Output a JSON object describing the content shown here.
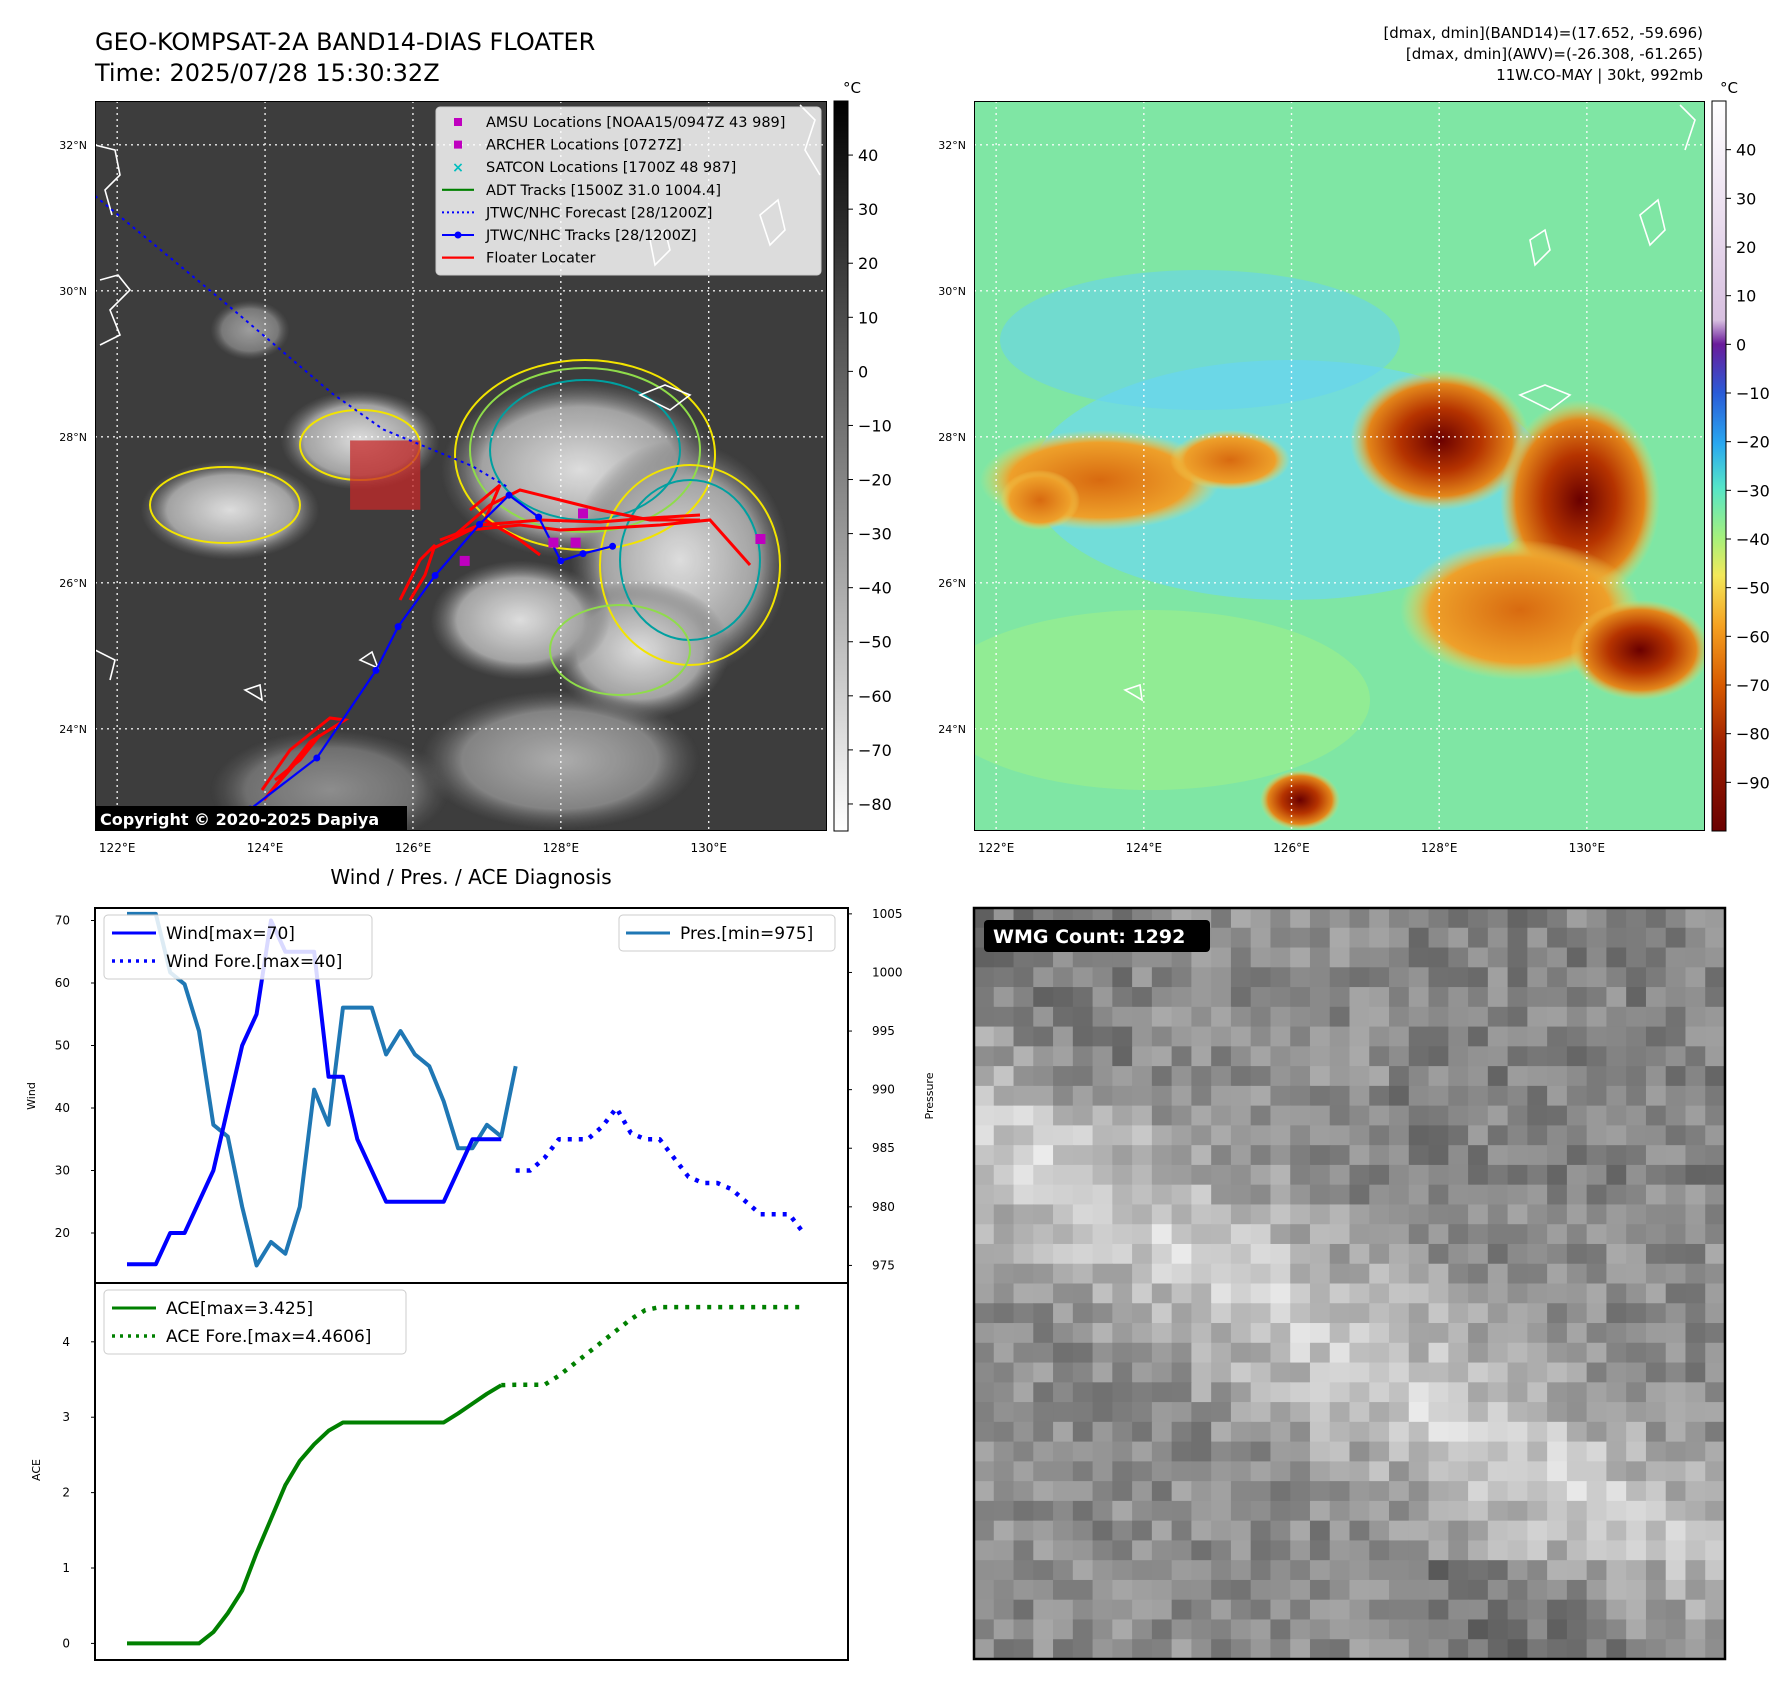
{
  "header": {
    "title_line1": "GEO-KOMPSAT-2A BAND14-DIAS FLOATER",
    "title_line2": "Time: 2025/07/28 15:30:32Z",
    "info_line1": "[dmax, dmin](BAND14)=(17.652, -59.696)",
    "info_line2": "[dmax, dmin](AWV)=(-26.308, -61.265)",
    "info_line3": "11W.CO-MAY | 30kt, 992mb"
  },
  "map": {
    "lat_labels": [
      "32°N",
      "30°N",
      "28°N",
      "26°N",
      "24°N"
    ],
    "lat_values": [
      32,
      30,
      28,
      26,
      24
    ],
    "lon_labels": [
      "122°E",
      "124°E",
      "126°E",
      "128°E",
      "130°E"
    ],
    "lon_values": [
      122,
      124,
      126,
      128,
      130
    ],
    "lon_range": [
      121.7,
      131.6
    ],
    "lat_range": [
      22.6,
      32.6
    ],
    "copyright": "Copyright © 2020-2025 Dapiya",
    "legend": [
      {
        "label": "AMSU Locations [NOAA15/0947Z 43 989]",
        "color": "#bf00bf",
        "symbol": "square"
      },
      {
        "label": "ARCHER Locations [0727Z]",
        "color": "#bf00bf",
        "symbol": "square"
      },
      {
        "label": "SATCON Locations [1700Z 48 987]",
        "color": "#00bfbf",
        "symbol": "x"
      },
      {
        "label": "ADT Tracks [1500Z 31.0 1004.4]",
        "color": "#008000",
        "symbol": "line"
      },
      {
        "label": "JTWC/NHC Forecast [28/1200Z]",
        "color": "#0000ff",
        "symbol": "dotted"
      },
      {
        "label": "JTWC/NHC Tracks [28/1200Z]",
        "color": "#0000ff",
        "symbol": "line-dot"
      },
      {
        "label": "Floater Locater",
        "color": "#ff0000",
        "symbol": "line"
      }
    ],
    "jtwc_forecast_track": [
      [
        121.7,
        31.3
      ],
      [
        123.5,
        29.8
      ],
      [
        124.9,
        28.6
      ],
      [
        125.6,
        28.1
      ],
      [
        126.8,
        27.6
      ],
      [
        127.3,
        27.3
      ]
    ],
    "jtwc_track": [
      [
        123.8,
        22.9
      ],
      [
        124.7,
        23.6
      ],
      [
        125.5,
        24.8
      ],
      [
        125.8,
        25.4
      ],
      [
        126.3,
        26.1
      ],
      [
        126.9,
        26.8
      ],
      [
        127.3,
        27.2
      ],
      [
        127.7,
        26.9
      ],
      [
        128.0,
        26.3
      ],
      [
        128.3,
        26.4
      ],
      [
        128.7,
        26.5
      ]
    ],
    "amsu_points": [
      [
        128.3,
        26.95
      ],
      [
        130.7,
        26.6
      ],
      [
        126.7,
        26.3
      ],
      [
        127.9,
        26.55
      ],
      [
        128.2,
        26.55
      ]
    ],
    "floater_box": {
      "lon": [
        125.15,
        126.1
      ],
      "lat": [
        27.0,
        27.95
      ]
    }
  },
  "colorbar_left": {
    "unit": "°C",
    "tick_values": [
      40,
      30,
      20,
      10,
      0,
      -10,
      -20,
      -30,
      -40,
      -50,
      -60,
      -70,
      -80
    ],
    "tick_labels": [
      "40",
      "30",
      "20",
      "10",
      "0",
      "−10",
      "−20",
      "−30",
      "−40",
      "−50",
      "−60",
      "−70",
      "−80"
    ],
    "range": [
      -85,
      50
    ]
  },
  "colorbar_right": {
    "unit": "°C",
    "tick_values": [
      40,
      30,
      20,
      10,
      0,
      -10,
      -20,
      -30,
      -40,
      -50,
      -60,
      -70,
      -80,
      -90
    ],
    "tick_labels": [
      "40",
      "30",
      "20",
      "10",
      "0",
      "−10",
      "−20",
      "−30",
      "−40",
      "−50",
      "−60",
      "−70",
      "−80",
      "−90"
    ],
    "range": [
      -100,
      50
    ]
  },
  "chart_data": [
    {
      "type": "line",
      "title": "Wind / Pres. / ACE Diagnosis",
      "ylabel": "Wind",
      "ylabel_right": "Pressure",
      "x_index_range": [
        0,
        48
      ],
      "ylim": [
        12,
        72
      ],
      "ylim_right": [
        973.5,
        1005.5
      ],
      "yticks": [
        20,
        30,
        40,
        50,
        60,
        70
      ],
      "yticks_right": [
        975,
        980,
        985,
        990,
        995,
        1000,
        1005
      ],
      "series": [
        {
          "name": "Wind[max=70]",
          "axis": "left",
          "color": "#0000ff",
          "style": "solid",
          "x": [
            0,
            1,
            2,
            3,
            4,
            5,
            6,
            7,
            8,
            9,
            10,
            11,
            12,
            13,
            14,
            15,
            16,
            17,
            18,
            19,
            20,
            21,
            22,
            23,
            24,
            25,
            26
          ],
          "values": [
            15,
            15,
            15,
            20,
            20,
            25,
            30,
            40,
            50,
            55,
            70,
            65,
            65,
            65,
            45,
            45,
            35,
            30,
            25,
            25,
            25,
            25,
            25,
            30,
            35,
            35,
            35
          ]
        },
        {
          "name": "Wind Fore.[max=40]",
          "axis": "left",
          "color": "#0000ff",
          "style": "dotted",
          "x": [
            27,
            28,
            29,
            30,
            31,
            32,
            33,
            34,
            35,
            36,
            37,
            38,
            39,
            40,
            41,
            42,
            43,
            44,
            45,
            46,
            47
          ],
          "values": [
            30,
            30,
            32,
            35,
            35,
            35,
            37,
            40,
            36,
            35,
            35,
            32,
            29,
            28,
            28,
            27,
            25,
            23,
            23,
            23,
            20
          ]
        },
        {
          "name": "Pres.[min=975]",
          "axis": "right",
          "color": "#1f77b4",
          "style": "solid",
          "x": [
            0,
            1,
            2,
            3,
            4,
            5,
            6,
            7,
            8,
            9,
            10,
            11,
            12,
            13,
            14,
            15,
            16,
            17,
            18,
            19,
            20,
            21,
            22,
            23,
            24,
            25,
            26,
            27
          ],
          "values": [
            1005,
            1005,
            1005,
            1000,
            999,
            995,
            987,
            986,
            980,
            975,
            977,
            976,
            980,
            990,
            987,
            997,
            997,
            997,
            993,
            995,
            993,
            992,
            989,
            985,
            985,
            987,
            986,
            992
          ]
        }
      ]
    },
    {
      "type": "line",
      "ylabel": "ACE",
      "x_index_range": [
        0,
        48
      ],
      "ylim": [
        -0.22,
        4.78
      ],
      "yticks": [
        0,
        1,
        2,
        3,
        4
      ],
      "series": [
        {
          "name": "ACE[max=3.425]",
          "color": "#008000",
          "style": "solid",
          "x": [
            0,
            1,
            2,
            3,
            4,
            5,
            6,
            7,
            8,
            9,
            10,
            11,
            12,
            13,
            14,
            15,
            16,
            17,
            18,
            19,
            20,
            21,
            22,
            23,
            24,
            25,
            26
          ],
          "values": [
            0,
            0,
            0,
            0,
            0,
            0,
            0.15,
            0.4,
            0.7,
            1.2,
            1.65,
            2.1,
            2.42,
            2.64,
            2.82,
            2.93,
            2.93,
            2.93,
            2.93,
            2.93,
            2.93,
            2.93,
            2.93,
            3.05,
            3.18,
            3.31,
            3.425
          ]
        },
        {
          "name": "ACE Fore.[max=4.4606]",
          "color": "#008000",
          "style": "dotted",
          "x": [
            26,
            27,
            28,
            29,
            30,
            31,
            32,
            33,
            34,
            35,
            36,
            37,
            38,
            39,
            40,
            41,
            42,
            43,
            44,
            45,
            46,
            47
          ],
          "values": [
            3.425,
            3.43,
            3.43,
            3.43,
            3.55,
            3.7,
            3.85,
            4.0,
            4.15,
            4.3,
            4.42,
            4.46,
            4.46,
            4.46,
            4.46,
            4.46,
            4.46,
            4.46,
            4.46,
            4.46,
            4.46,
            4.46
          ]
        }
      ]
    }
  ],
  "wmg": {
    "label": "WMG Count: 1292"
  }
}
